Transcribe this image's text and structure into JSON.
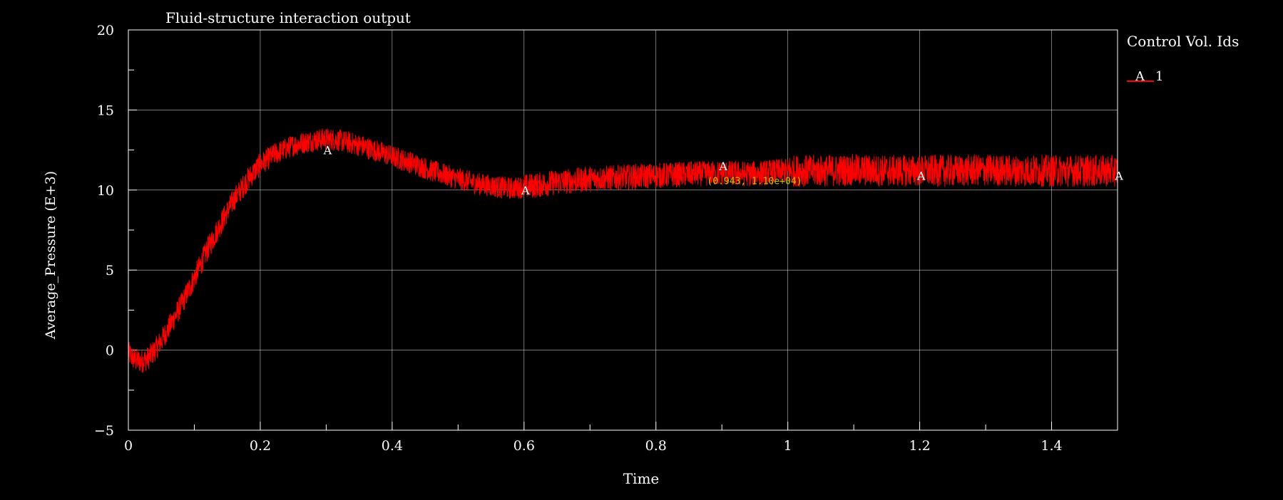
{
  "chart_data": {
    "type": "line",
    "title": "Fluid-structure interaction output",
    "xlabel": "Time",
    "ylabel": "Average_Pressure (E+3)",
    "xlim": [
      0,
      1.5
    ],
    "ylim": [
      -5,
      20
    ],
    "x_ticks": [
      0,
      0.2,
      0.4,
      0.6,
      0.8,
      1,
      1.2,
      1.4
    ],
    "x_tick_labels": [
      "0",
      "0.2",
      "0.4",
      "0.6",
      "0.8",
      "1",
      "1.2",
      "1.4"
    ],
    "y_ticks": [
      -5,
      0,
      5,
      10,
      15,
      20
    ],
    "y_tick_labels": [
      "−5",
      "0",
      "5",
      "10",
      "15",
      "20"
    ],
    "grid": true,
    "legend": {
      "title": "Control Vol. Ids",
      "placement": "right",
      "entries": [
        {
          "marker": "A",
          "label": "1",
          "color": "#ff0000"
        }
      ]
    },
    "series": [
      {
        "name": "1",
        "marker": "A",
        "color": "#ff0000",
        "x": [
          0,
          0.01,
          0.02,
          0.03,
          0.04,
          0.05,
          0.06,
          0.08,
          0.1,
          0.12,
          0.14,
          0.16,
          0.18,
          0.2,
          0.22,
          0.25,
          0.28,
          0.3,
          0.32,
          0.35,
          0.38,
          0.4,
          0.43,
          0.46,
          0.5,
          0.53,
          0.56,
          0.58,
          0.6,
          0.62,
          0.65,
          0.68,
          0.7,
          0.75,
          0.8,
          0.85,
          0.9,
          0.943,
          1.0,
          1.05,
          1.1,
          1.15,
          1.2,
          1.25,
          1.3,
          1.35,
          1.4,
          1.45,
          1.5
        ],
        "y": [
          -0.2,
          -0.6,
          -0.7,
          -0.5,
          0.0,
          0.6,
          1.3,
          2.8,
          4.5,
          6.3,
          7.9,
          9.4,
          10.6,
          11.6,
          12.2,
          12.8,
          13.1,
          13.2,
          13.1,
          12.8,
          12.4,
          12.1,
          11.7,
          11.2,
          10.7,
          10.4,
          10.2,
          10.1,
          10.2,
          10.3,
          10.5,
          10.6,
          10.7,
          10.8,
          10.9,
          11.0,
          11.05,
          11.0,
          11.2,
          11.2,
          11.25,
          11.2,
          11.2,
          11.2,
          11.25,
          11.2,
          11.2,
          11.2,
          11.2
        ]
      }
    ],
    "series_markers": [
      {
        "label": "A",
        "x": 0.3,
        "y": 12.5
      },
      {
        "label": "A",
        "x": 0.6,
        "y": 10.0
      },
      {
        "label": "A",
        "x": 0.9,
        "y": 11.5
      },
      {
        "label": "A",
        "x": 1.2,
        "y": 10.9
      },
      {
        "label": "A",
        "x": 1.5,
        "y": 10.9
      }
    ],
    "probe": {
      "x": 0.943,
      "y": 11.0,
      "text": "(0.943, 1.10e+04)",
      "color": "#c8c800"
    },
    "line_color": "#ff0000",
    "grid_color": "#ffffff",
    "background": "#000000"
  }
}
